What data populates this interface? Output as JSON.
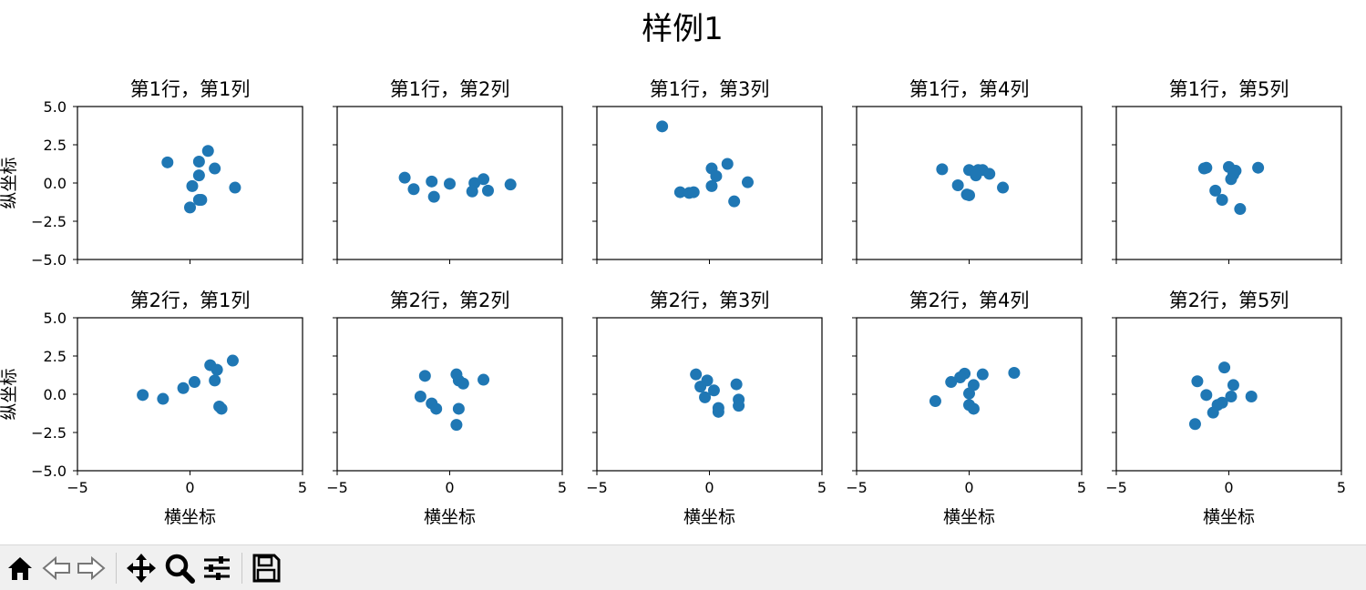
{
  "figure": {
    "title": "样例1",
    "xlabel": "横坐标",
    "ylabel": "纵坐标"
  },
  "chart_data": [
    {
      "type": "scatter",
      "title": "第1行，第1列",
      "xlim": [
        -5,
        5
      ],
      "ylim": [
        -5,
        5
      ],
      "xticks": [
        "−5",
        "0",
        "5"
      ],
      "yticks": [
        "5.0",
        "2.5",
        "0.0",
        "−2.5",
        "−5.0"
      ],
      "color": "#1f77b4",
      "x": [
        -1.0,
        0.8,
        0.4,
        1.1,
        0.4,
        0.1,
        0.4,
        0.5,
        0.0,
        2.0
      ],
      "y": [
        1.35,
        2.1,
        1.4,
        0.95,
        0.5,
        -0.2,
        -1.1,
        -1.1,
        -1.6,
        -0.3
      ]
    },
    {
      "type": "scatter",
      "title": "第1行，第2列",
      "xlim": [
        -5,
        5
      ],
      "ylim": [
        -5,
        5
      ],
      "xticks": [
        "−5",
        "0",
        "5"
      ],
      "yticks": [
        "5.0",
        "2.5",
        "0.0",
        "−2.5",
        "−5.0"
      ],
      "color": "#1f77b4",
      "x": [
        -2.0,
        -1.6,
        -0.8,
        -0.7,
        0.0,
        1.1,
        1.5,
        1.0,
        1.7,
        2.7
      ],
      "y": [
        0.35,
        -0.4,
        0.1,
        -0.9,
        -0.05,
        0.0,
        0.25,
        -0.55,
        -0.5,
        -0.1
      ]
    },
    {
      "type": "scatter",
      "title": "第1行，第3列",
      "xlim": [
        -5,
        5
      ],
      "ylim": [
        -5,
        5
      ],
      "xticks": [
        "−5",
        "0",
        "5"
      ],
      "yticks": [
        "5.0",
        "2.5",
        "0.0",
        "−2.5",
        "−5.0"
      ],
      "color": "#1f77b4",
      "x": [
        -2.1,
        0.8,
        0.1,
        0.3,
        1.7,
        0.1,
        -1.3,
        -0.9,
        -0.7,
        1.1
      ],
      "y": [
        3.7,
        1.25,
        0.95,
        0.45,
        0.05,
        -0.2,
        -0.6,
        -0.65,
        -0.6,
        -1.2
      ]
    },
    {
      "type": "scatter",
      "title": "第1行，第4列",
      "xlim": [
        -5,
        5
      ],
      "ylim": [
        -5,
        5
      ],
      "xticks": [
        "−5",
        "0",
        "5"
      ],
      "yticks": [
        "5.0",
        "2.5",
        "0.0",
        "−2.5",
        "−5.0"
      ],
      "color": "#1f77b4",
      "x": [
        -1.2,
        0.0,
        0.4,
        0.6,
        0.9,
        0.3,
        -0.5,
        1.5,
        -0.1,
        0.0
      ],
      "y": [
        0.9,
        0.85,
        0.85,
        0.85,
        0.6,
        0.5,
        -0.15,
        -0.3,
        -0.75,
        -0.8
      ]
    },
    {
      "type": "scatter",
      "title": "第1行，第5列",
      "xlim": [
        -5,
        5
      ],
      "ylim": [
        -5,
        5
      ],
      "xticks": [
        "−5",
        "0",
        "5"
      ],
      "yticks": [
        "5.0",
        "2.5",
        "0.0",
        "−2.5",
        "−5.0"
      ],
      "color": "#1f77b4",
      "x": [
        -1.1,
        -1.0,
        0.0,
        0.3,
        1.3,
        0.2,
        0.1,
        -0.6,
        -0.3,
        0.5
      ],
      "y": [
        0.95,
        1.0,
        1.05,
        0.8,
        1.0,
        0.55,
        0.25,
        -0.5,
        -1.1,
        -1.7
      ]
    },
    {
      "type": "scatter",
      "title": "第2行，第1列",
      "xlim": [
        -5,
        5
      ],
      "ylim": [
        -5,
        5
      ],
      "xticks": [
        "−5",
        "0",
        "5"
      ],
      "yticks": [
        "5.0",
        "2.5",
        "0.0",
        "−2.5",
        "−5.0"
      ],
      "color": "#1f77b4",
      "x": [
        -2.1,
        -1.2,
        -0.3,
        0.2,
        0.9,
        1.2,
        1.9,
        1.1,
        1.3,
        1.4
      ],
      "y": [
        -0.05,
        -0.3,
        0.4,
        0.8,
        1.9,
        1.6,
        2.2,
        0.9,
        -0.8,
        -0.95
      ]
    },
    {
      "type": "scatter",
      "title": "第2行，第2列",
      "xlim": [
        -5,
        5
      ],
      "ylim": [
        -5,
        5
      ],
      "xticks": [
        "−5",
        "0",
        "5"
      ],
      "yticks": [
        "5.0",
        "2.5",
        "0.0",
        "−2.5",
        "−5.0"
      ],
      "color": "#1f77b4",
      "x": [
        -1.1,
        0.3,
        0.4,
        0.6,
        1.5,
        -1.3,
        -0.8,
        -0.6,
        0.4,
        0.3
      ],
      "y": [
        1.2,
        1.3,
        0.9,
        0.7,
        0.95,
        -0.15,
        -0.6,
        -0.95,
        -0.95,
        -2.0
      ]
    },
    {
      "type": "scatter",
      "title": "第2行，第3列",
      "xlim": [
        -5,
        5
      ],
      "ylim": [
        -5,
        5
      ],
      "xticks": [
        "−5",
        "0",
        "5"
      ],
      "yticks": [
        "5.0",
        "2.5",
        "0.0",
        "−2.5",
        "−5.0"
      ],
      "color": "#1f77b4",
      "x": [
        -0.6,
        -0.1,
        -0.4,
        0.2,
        -0.2,
        1.2,
        1.3,
        0.4,
        0.4,
        1.3
      ],
      "y": [
        1.3,
        0.9,
        0.5,
        0.25,
        -0.2,
        0.65,
        -0.35,
        -0.9,
        -1.15,
        -0.75
      ]
    },
    {
      "type": "scatter",
      "title": "第2行，第4列",
      "xlim": [
        -5,
        5
      ],
      "ylim": [
        -5,
        5
      ],
      "xticks": [
        "−5",
        "0",
        "5"
      ],
      "yticks": [
        "5.0",
        "2.5",
        "0.0",
        "−2.5",
        "−5.0"
      ],
      "color": "#1f77b4",
      "x": [
        -0.2,
        0.6,
        2.0,
        -0.4,
        -0.8,
        0.2,
        0.0,
        -1.5,
        0.0,
        0.2
      ],
      "y": [
        1.35,
        1.3,
        1.4,
        1.1,
        0.8,
        0.6,
        0.05,
        -0.45,
        -0.7,
        -0.95
      ]
    },
    {
      "type": "scatter",
      "title": "第2行，第5列",
      "xlim": [
        -5,
        5
      ],
      "ylim": [
        -5,
        5
      ],
      "xticks": [
        "−5",
        "0",
        "5"
      ],
      "yticks": [
        "5.0",
        "2.5",
        "0.0",
        "−2.5",
        "−5.0"
      ],
      "color": "#1f77b4",
      "x": [
        -0.2,
        -1.4,
        0.2,
        -1.0,
        0.1,
        1.0,
        -0.3,
        -0.5,
        -0.7,
        -1.5
      ],
      "y": [
        1.75,
        0.85,
        0.6,
        -0.05,
        -0.15,
        -0.15,
        -0.55,
        -0.7,
        -1.2,
        -1.95
      ]
    }
  ],
  "toolbar": {
    "icons": [
      "home-icon",
      "back-arrow-icon",
      "forward-arrow-icon",
      "pan-move-icon",
      "zoom-magnifier-icon",
      "subplots-config-icon",
      "save-floppy-icon"
    ]
  }
}
